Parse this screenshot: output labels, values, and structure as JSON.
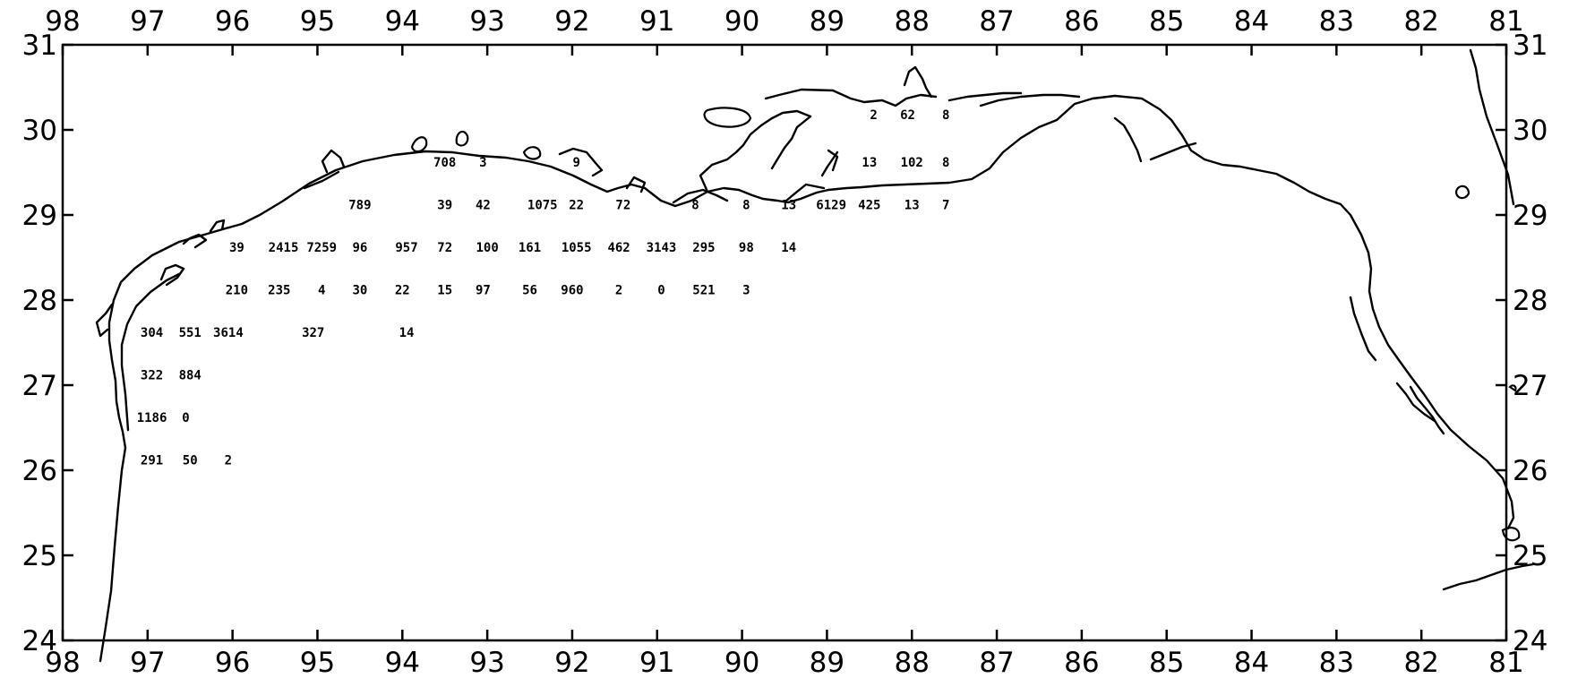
{
  "map": {
    "lon_range": [
      98,
      81
    ],
    "lat_range": [
      24,
      31
    ],
    "top_lon_labels": [
      "98",
      "97",
      "96",
      "95",
      "94",
      "93",
      "92",
      "91",
      "90",
      "89",
      "88",
      "87",
      "86",
      "85",
      "84",
      "83",
      "82",
      "81"
    ],
    "bottom_lon_labels": [
      "98",
      "97",
      "96",
      "95",
      "94",
      "93",
      "92",
      "91",
      "90",
      "89",
      "88",
      "87",
      "86",
      "85",
      "84",
      "83",
      "82",
      "81"
    ],
    "left_lat_labels": [
      "31",
      "30",
      "29",
      "28",
      "27",
      "26",
      "25",
      "24"
    ],
    "right_lat_labels": [
      "31",
      "30",
      "29",
      "28",
      "27",
      "26",
      "25",
      "24"
    ],
    "stations": [
      {
        "lon": 88.45,
        "lat": 30.18,
        "value": "2"
      },
      {
        "lon": 88.05,
        "lat": 30.18,
        "value": "62"
      },
      {
        "lon": 87.6,
        "lat": 30.18,
        "value": "8"
      },
      {
        "lon": 88.5,
        "lat": 29.62,
        "value": "13"
      },
      {
        "lon": 88.0,
        "lat": 29.62,
        "value": "102"
      },
      {
        "lon": 87.6,
        "lat": 29.62,
        "value": "8"
      },
      {
        "lon": 93.5,
        "lat": 29.62,
        "value": "708"
      },
      {
        "lon": 93.05,
        "lat": 29.62,
        "value": "3"
      },
      {
        "lon": 91.95,
        "lat": 29.62,
        "value": "9"
      },
      {
        "lon": 94.5,
        "lat": 29.12,
        "value": "789"
      },
      {
        "lon": 93.5,
        "lat": 29.12,
        "value": "39"
      },
      {
        "lon": 93.05,
        "lat": 29.12,
        "value": "42"
      },
      {
        "lon": 92.35,
        "lat": 29.12,
        "value": "1075"
      },
      {
        "lon": 91.95,
        "lat": 29.12,
        "value": "22"
      },
      {
        "lon": 91.4,
        "lat": 29.12,
        "value": "72"
      },
      {
        "lon": 90.55,
        "lat": 29.12,
        "value": "8"
      },
      {
        "lon": 89.95,
        "lat": 29.12,
        "value": "8"
      },
      {
        "lon": 89.45,
        "lat": 29.12,
        "value": "13"
      },
      {
        "lon": 88.95,
        "lat": 29.12,
        "value": "6129"
      },
      {
        "lon": 88.5,
        "lat": 29.12,
        "value": "425"
      },
      {
        "lon": 88.0,
        "lat": 29.12,
        "value": "13"
      },
      {
        "lon": 87.6,
        "lat": 29.12,
        "value": "7"
      },
      {
        "lon": 95.95,
        "lat": 28.62,
        "value": "39"
      },
      {
        "lon": 95.4,
        "lat": 28.62,
        "value": "2415"
      },
      {
        "lon": 94.95,
        "lat": 28.62,
        "value": "7259"
      },
      {
        "lon": 94.5,
        "lat": 28.62,
        "value": "96"
      },
      {
        "lon": 93.95,
        "lat": 28.62,
        "value": "957"
      },
      {
        "lon": 93.5,
        "lat": 28.62,
        "value": "72"
      },
      {
        "lon": 93.0,
        "lat": 28.62,
        "value": "100"
      },
      {
        "lon": 92.5,
        "lat": 28.62,
        "value": "161"
      },
      {
        "lon": 91.95,
        "lat": 28.62,
        "value": "1055"
      },
      {
        "lon": 91.45,
        "lat": 28.62,
        "value": "462"
      },
      {
        "lon": 90.95,
        "lat": 28.62,
        "value": "3143"
      },
      {
        "lon": 90.45,
        "lat": 28.62,
        "value": "295"
      },
      {
        "lon": 89.95,
        "lat": 28.62,
        "value": "98"
      },
      {
        "lon": 89.45,
        "lat": 28.62,
        "value": "14"
      },
      {
        "lon": 95.95,
        "lat": 28.12,
        "value": "210"
      },
      {
        "lon": 95.45,
        "lat": 28.12,
        "value": "235"
      },
      {
        "lon": 94.95,
        "lat": 28.12,
        "value": "4"
      },
      {
        "lon": 94.5,
        "lat": 28.12,
        "value": "30"
      },
      {
        "lon": 94.0,
        "lat": 28.12,
        "value": "22"
      },
      {
        "lon": 93.5,
        "lat": 28.12,
        "value": "15"
      },
      {
        "lon": 93.05,
        "lat": 28.12,
        "value": "97"
      },
      {
        "lon": 92.5,
        "lat": 28.12,
        "value": "56"
      },
      {
        "lon": 92.0,
        "lat": 28.12,
        "value": "960"
      },
      {
        "lon": 91.45,
        "lat": 28.12,
        "value": "2"
      },
      {
        "lon": 90.95,
        "lat": 28.12,
        "value": "0"
      },
      {
        "lon": 90.45,
        "lat": 28.12,
        "value": "521"
      },
      {
        "lon": 89.95,
        "lat": 28.12,
        "value": "3"
      },
      {
        "lon": 96.95,
        "lat": 27.62,
        "value": "304"
      },
      {
        "lon": 96.5,
        "lat": 27.62,
        "value": "551"
      },
      {
        "lon": 96.05,
        "lat": 27.62,
        "value": "3614"
      },
      {
        "lon": 95.05,
        "lat": 27.62,
        "value": "327"
      },
      {
        "lon": 93.95,
        "lat": 27.62,
        "value": "14"
      },
      {
        "lon": 96.95,
        "lat": 27.12,
        "value": "322"
      },
      {
        "lon": 96.5,
        "lat": 27.12,
        "value": "884"
      },
      {
        "lon": 96.95,
        "lat": 26.62,
        "value": "1186"
      },
      {
        "lon": 96.55,
        "lat": 26.62,
        "value": "0"
      },
      {
        "lon": 96.95,
        "lat": 26.12,
        "value": "291"
      },
      {
        "lon": 96.5,
        "lat": 26.12,
        "value": "50"
      },
      {
        "lon": 96.05,
        "lat": 26.12,
        "value": "2"
      }
    ]
  }
}
